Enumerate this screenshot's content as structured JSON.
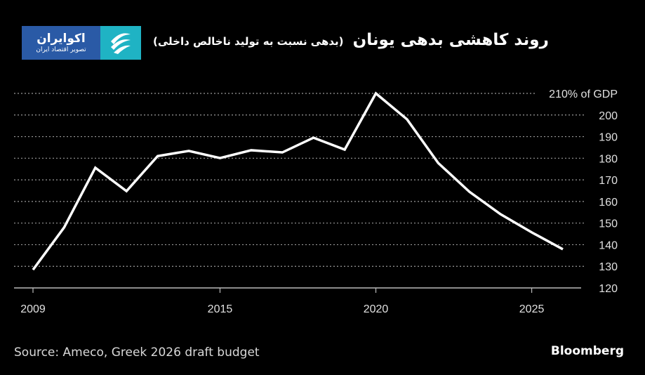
{
  "logo": {
    "main": "اکوایران",
    "sub": "تصویر اقتصاد ایران"
  },
  "header": {
    "title": "روند کاهشی بدهی یونان",
    "subtitle": "(بدهی نسبت به تولید ناخالص داخلی)"
  },
  "footer": {
    "source": "Source: Ameco, Greek 2026 draft budget",
    "brand": "Bloomberg"
  },
  "chart_data": {
    "type": "line",
    "x": [
      2009,
      2010,
      2011,
      2012,
      2013,
      2014,
      2015,
      2016,
      2017,
      2018,
      2019,
      2020,
      2021,
      2022,
      2023,
      2024,
      2025,
      2026
    ],
    "series": [
      {
        "values": [
          128.4,
          148,
          175.6,
          164.8,
          181,
          183.4,
          180.1,
          183.7,
          182.7,
          189.5,
          184,
          210,
          198,
          177.8,
          164.5,
          154.1,
          145.7,
          137.9
        ],
        "color": "#ffffff"
      }
    ],
    "xticks": [
      2009,
      2015,
      2020,
      2025
    ],
    "xtick_labels": [
      "2009",
      "2015",
      "2020",
      "2025"
    ],
    "yticks": [
      120,
      130,
      140,
      150,
      160,
      170,
      180,
      190,
      200,
      210
    ],
    "ytick_labels": [
      "120",
      "130",
      "140",
      "150",
      "160",
      "170",
      "180",
      "190",
      "200",
      "210% of GDP"
    ],
    "ylim": [
      120,
      210
    ],
    "xlim": [
      2009,
      2026
    ],
    "grid": true,
    "yaxis_position": "right"
  }
}
